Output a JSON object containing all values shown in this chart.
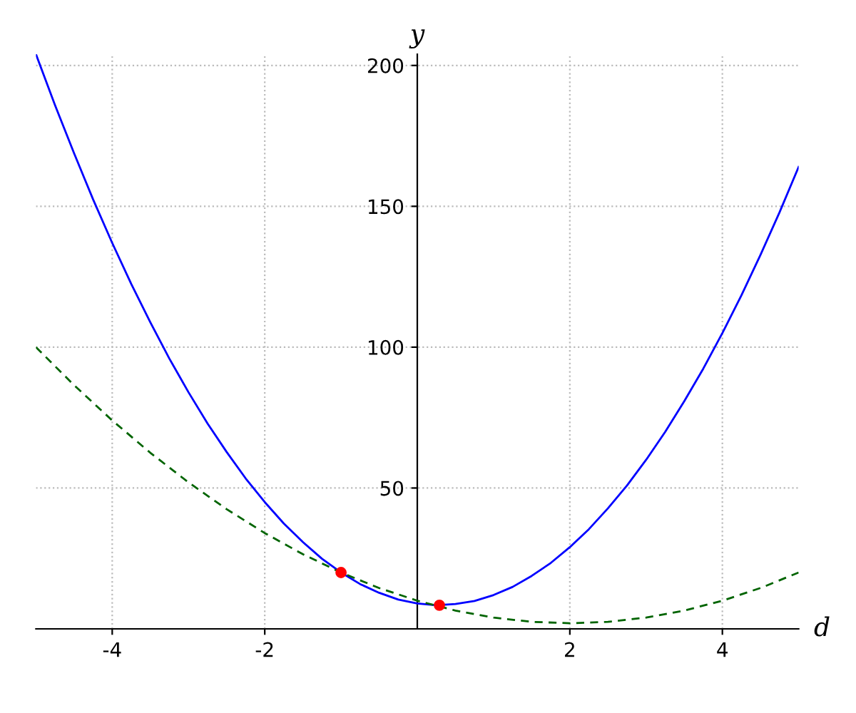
{
  "chart_data": {
    "type": "line",
    "xlabel": "d",
    "ylabel": "y",
    "xlim": [
      -5,
      5
    ],
    "ylim": [
      0,
      204
    ],
    "xticks": [
      {
        "value": -4,
        "label": "-4"
      },
      {
        "value": -2,
        "label": "-2"
      },
      2,
      4
    ],
    "yticks": [
      50,
      100,
      150,
      200
    ],
    "grid": true,
    "legend": false,
    "series": [
      {
        "color": "#0000ff",
        "line_style": "solid",
        "x": [
          -5,
          -4.75,
          -4.5,
          -4.25,
          -4,
          -3.75,
          -3.5,
          -3.25,
          -3,
          -2.75,
          -2.5,
          -2.25,
          -2,
          -1.75,
          -1.5,
          -1.25,
          -1,
          -0.75,
          -0.5,
          -0.25,
          0,
          0.25,
          0.5,
          0.75,
          1,
          1.25,
          1.5,
          1.75,
          2,
          2.25,
          2.5,
          2.75,
          3,
          3.25,
          3.5,
          3.75,
          4,
          4.25,
          4.5,
          4.75,
          5
        ],
        "values": [
          204,
          185.9,
          168.8,
          152.4,
          137,
          122.4,
          108.8,
          95.9,
          84,
          72.9,
          62.8,
          53.4,
          45,
          37.4,
          30.8,
          24.9,
          20,
          15.9,
          12.8,
          10.4,
          9,
          8.4,
          8.8,
          9.9,
          12,
          14.9,
          18.8,
          23.4,
          29,
          35.4,
          42.8,
          50.9,
          60,
          69.9,
          80.8,
          92.4,
          105,
          118.4,
          132.8,
          147.9,
          164
        ]
      },
      {
        "color": "#006400",
        "line_style": "dashed",
        "x": [
          -5,
          -4.5,
          -4,
          -3.5,
          -3,
          -2.5,
          -2,
          -1.5,
          -1,
          -0.5,
          0,
          0.5,
          1,
          1.5,
          2,
          2.5,
          3,
          3.5,
          4,
          4.5,
          5
        ],
        "values": [
          100,
          86.5,
          74,
          62.5,
          52,
          42.5,
          34,
          26.5,
          20,
          14.5,
          10,
          6.5,
          4,
          2.5,
          2,
          2.5,
          4,
          6.5,
          10,
          14.5,
          20
        ]
      },
      {
        "type": "scatter",
        "color": "#ff0000",
        "marker": "circle",
        "x": [
          -1,
          0.29
        ],
        "values": [
          20,
          8.4
        ]
      }
    ]
  }
}
